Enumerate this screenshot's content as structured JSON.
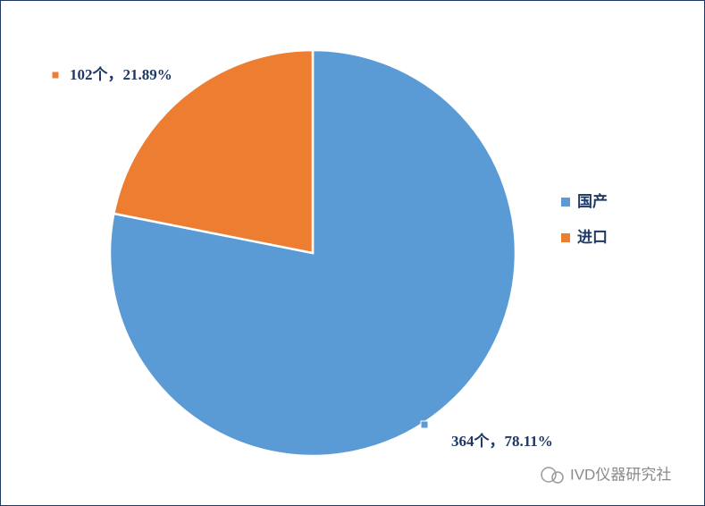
{
  "chart_data": {
    "type": "pie",
    "categories": [
      "国产",
      "进口"
    ],
    "values": [
      364,
      102
    ],
    "value_labels": [
      "364个，78.11%",
      "102个，21.89%"
    ],
    "colors": [
      "#5b9bd5",
      "#ed7d31"
    ],
    "legend": "right"
  },
  "watermark": "IVD仪器研究社"
}
